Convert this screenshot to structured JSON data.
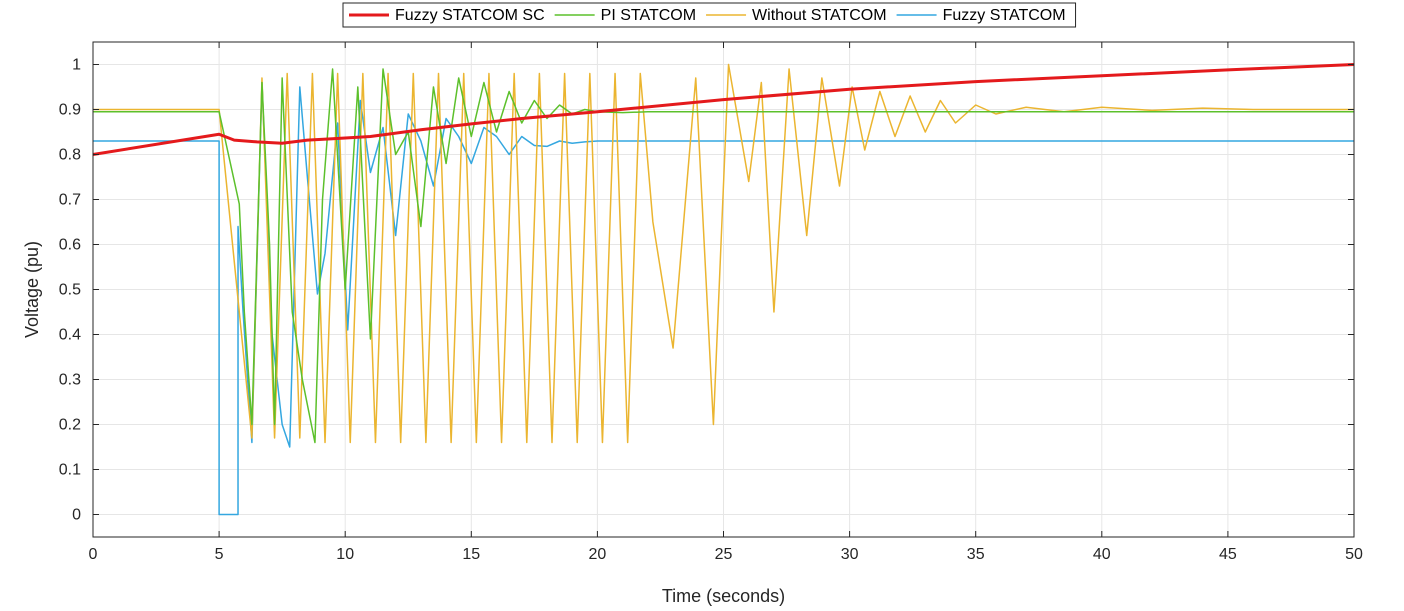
{
  "chart_data": {
    "type": "line",
    "xlabel": "Time (seconds)",
    "ylabel": "Voltage (pu)",
    "xlim": [
      0,
      50
    ],
    "ylim": [
      -0.05,
      1.05
    ],
    "xticks": [
      0,
      5,
      10,
      15,
      20,
      25,
      30,
      35,
      40,
      45,
      50
    ],
    "yticks": [
      0,
      0.1,
      0.2,
      0.3,
      0.4,
      0.5,
      0.6,
      0.7,
      0.8,
      0.9,
      1
    ],
    "grid": true,
    "legend_position": "top",
    "series": [
      {
        "name": "Fuzzy STATCOM SC",
        "color": "#e41a1c",
        "x": [
          0,
          5,
          5.6,
          6.5,
          7.5,
          8.5,
          9.5,
          11,
          13,
          15,
          17,
          20,
          25,
          30,
          35,
          40,
          45,
          50
        ],
        "y": [
          0.8,
          0.845,
          0.832,
          0.828,
          0.825,
          0.832,
          0.835,
          0.84,
          0.855,
          0.868,
          0.88,
          0.895,
          0.922,
          0.945,
          0.962,
          0.975,
          0.988,
          1.0
        ]
      },
      {
        "name": "PI STATCOM",
        "color": "#5cc02b",
        "x": [
          0,
          5,
          5.8,
          6.0,
          6.3,
          6.7,
          7.0,
          7.2,
          7.5,
          7.9,
          8.3,
          8.8,
          9.1,
          9.5,
          10.0,
          10.5,
          11.0,
          11.5,
          12.0,
          12.5,
          13.0,
          13.5,
          14.0,
          14.5,
          15.0,
          15.5,
          16.0,
          16.5,
          17.0,
          17.5,
          18.0,
          18.5,
          19.0,
          19.5,
          20.0,
          21.0,
          22.0,
          50
        ],
        "y": [
          0.895,
          0.895,
          0.69,
          0.45,
          0.2,
          0.96,
          0.6,
          0.2,
          0.97,
          0.45,
          0.3,
          0.16,
          0.7,
          0.99,
          0.5,
          0.95,
          0.39,
          0.99,
          0.8,
          0.85,
          0.64,
          0.95,
          0.78,
          0.97,
          0.84,
          0.96,
          0.85,
          0.94,
          0.87,
          0.92,
          0.88,
          0.91,
          0.89,
          0.9,
          0.895,
          0.893,
          0.895,
          0.895
        ]
      },
      {
        "name": "Without STATCOM",
        "color": "#ebb530",
        "x": [
          0,
          5,
          5.8,
          6.3,
          6.7,
          7.2,
          7.7,
          8.2,
          8.7,
          9.2,
          9.7,
          10.2,
          10.7,
          11.2,
          11.7,
          12.2,
          12.7,
          13.2,
          13.7,
          14.2,
          14.7,
          15.2,
          15.7,
          16.2,
          16.7,
          17.2,
          17.7,
          18.2,
          18.7,
          19.2,
          19.7,
          20.2,
          20.7,
          21.2,
          21.7,
          22.2,
          23.0,
          23.9,
          24.6,
          25.2,
          26.0,
          26.5,
          27.0,
          27.6,
          28.3,
          28.9,
          29.6,
          30.1,
          30.6,
          31.2,
          31.8,
          32.4,
          33.0,
          33.6,
          34.2,
          35.0,
          35.8,
          37.0,
          38.5,
          40.0,
          42.0,
          44.0,
          46.0,
          50
        ],
        "y": [
          0.9,
          0.9,
          0.45,
          0.17,
          0.97,
          0.17,
          0.98,
          0.17,
          0.98,
          0.16,
          0.98,
          0.16,
          0.98,
          0.16,
          0.98,
          0.16,
          0.98,
          0.16,
          0.98,
          0.16,
          0.98,
          0.16,
          0.98,
          0.16,
          0.98,
          0.16,
          0.98,
          0.16,
          0.98,
          0.16,
          0.98,
          0.16,
          0.98,
          0.16,
          0.98,
          0.65,
          0.37,
          0.97,
          0.2,
          1.0,
          0.74,
          0.96,
          0.45,
          0.99,
          0.62,
          0.97,
          0.73,
          0.95,
          0.81,
          0.94,
          0.84,
          0.93,
          0.85,
          0.92,
          0.87,
          0.91,
          0.89,
          0.905,
          0.895,
          0.905,
          0.898,
          0.903,
          0.9,
          0.9
        ]
      },
      {
        "name": "Fuzzy STATCOM",
        "color": "#34a7e0",
        "x": [
          0,
          5,
          5.0,
          5.75,
          5.75,
          5.95,
          6.3,
          6.7,
          7.1,
          7.5,
          7.8,
          8.2,
          8.5,
          8.9,
          9.2,
          9.7,
          10.1,
          10.6,
          11.0,
          11.5,
          12.0,
          12.5,
          13.0,
          13.5,
          14.0,
          14.5,
          15.0,
          15.5,
          16.0,
          16.5,
          17.0,
          17.5,
          18.0,
          18.5,
          19.0,
          19.5,
          20.0,
          50
        ],
        "y": [
          0.83,
          0.83,
          0.0,
          0.0,
          0.64,
          0.45,
          0.16,
          0.96,
          0.4,
          0.2,
          0.15,
          0.95,
          0.75,
          0.49,
          0.58,
          0.87,
          0.41,
          0.92,
          0.76,
          0.86,
          0.62,
          0.89,
          0.83,
          0.73,
          0.88,
          0.84,
          0.78,
          0.86,
          0.84,
          0.8,
          0.84,
          0.82,
          0.818,
          0.83,
          0.825,
          0.828,
          0.83,
          0.83
        ]
      }
    ]
  }
}
